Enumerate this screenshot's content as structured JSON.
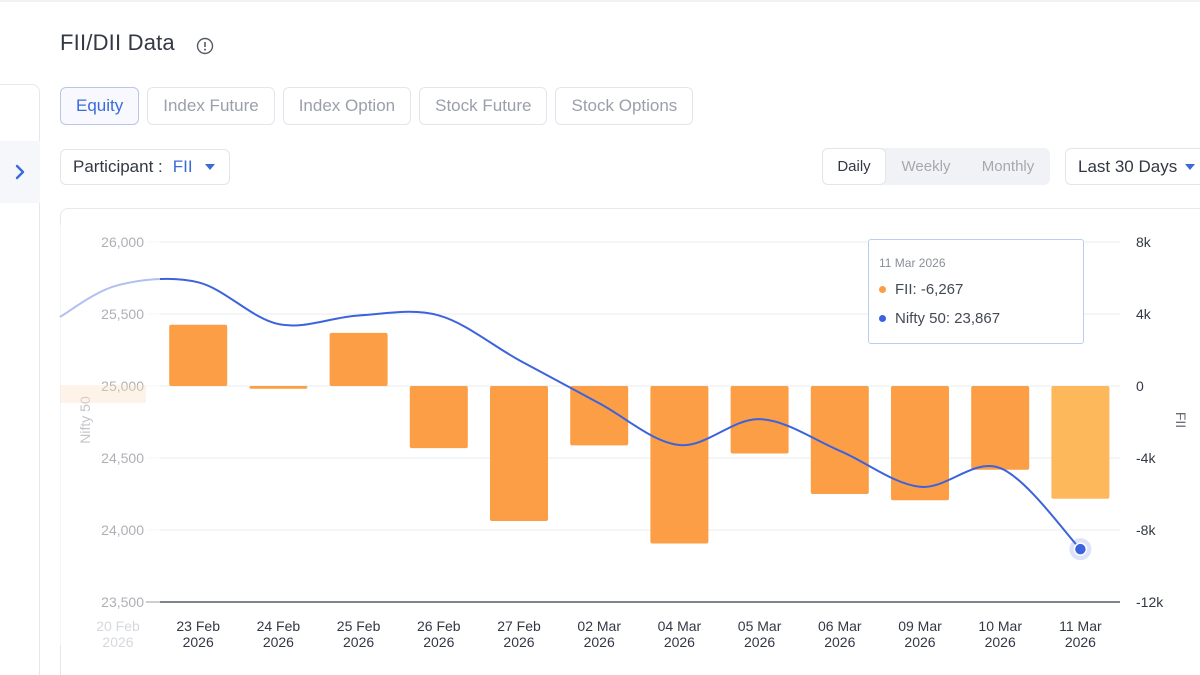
{
  "header": {
    "title": "FII/DII Data",
    "info_icon": "info-circle-icon"
  },
  "sidebar": {
    "toggle_icon": "chevron-right-icon"
  },
  "tabs": [
    {
      "label": "Equity",
      "active": true
    },
    {
      "label": "Index Future",
      "active": false
    },
    {
      "label": "Index Option",
      "active": false
    },
    {
      "label": "Stock Future",
      "active": false
    },
    {
      "label": "Stock Options",
      "active": false
    }
  ],
  "participant": {
    "label": "Participant :",
    "value": "FII"
  },
  "period": {
    "options": [
      "Daily",
      "Weekly",
      "Monthly"
    ],
    "selected": "Daily"
  },
  "range": {
    "value": "Last 30 Days"
  },
  "colors": {
    "accent": "#3b6bd6",
    "bar": "#fb9e45",
    "bar_highlight": "#fdb85c",
    "line": "#3c63dd"
  },
  "tooltip": {
    "date": "11 Mar 2026",
    "fii_text": "FII: -6,267",
    "nifty_text": "Nifty 50: 23,867"
  },
  "chart_data": {
    "type": "bar",
    "categories": [
      [
        "20 Feb",
        "2026"
      ],
      [
        "23 Feb",
        "2026"
      ],
      [
        "24 Feb",
        "2026"
      ],
      [
        "25 Feb",
        "2026"
      ],
      [
        "26 Feb",
        "2026"
      ],
      [
        "27 Feb",
        "2026"
      ],
      [
        "02 Mar",
        "2026"
      ],
      [
        "04 Mar",
        "2026"
      ],
      [
        "05 Mar",
        "2026"
      ],
      [
        "06 Mar",
        "2026"
      ],
      [
        "09 Mar",
        "2026"
      ],
      [
        "10 Mar",
        "2026"
      ],
      [
        "11 Mar",
        "2026"
      ]
    ],
    "faded_categories": [
      0
    ],
    "highlighted_index": 12,
    "series": [
      {
        "name": "FII",
        "type": "bar",
        "axis": "right",
        "values": [
          null,
          3400,
          -150,
          2950,
          -3450,
          -7500,
          -3300,
          -8750,
          -3750,
          -6000,
          -6350,
          -4650,
          -6267
        ]
      },
      {
        "name": "Nifty 50",
        "type": "line",
        "axis": "left",
        "values": [
          25700,
          25720,
          25430,
          25490,
          25490,
          25180,
          24880,
          24590,
          24770,
          24550,
          24300,
          24430,
          23867
        ]
      }
    ],
    "ylabel": "Nifty 50",
    "ylabel_right": "FII",
    "ylim": [
      23500,
      26000
    ],
    "ylim_right": [
      -12000,
      8000
    ],
    "yticks": [
      "26,000",
      "25,500",
      "25,000",
      "24,500",
      "24,000",
      "23,500"
    ],
    "yticks_right": [
      "8k",
      "4k",
      "0",
      "-4k",
      "-8k",
      "-12k"
    ],
    "yticks_values": [
      26000,
      25500,
      25000,
      24500,
      24000,
      23500
    ],
    "yticks_right_values": [
      8000,
      4000,
      0,
      -4000,
      -8000,
      -12000
    ],
    "grid": true
  }
}
